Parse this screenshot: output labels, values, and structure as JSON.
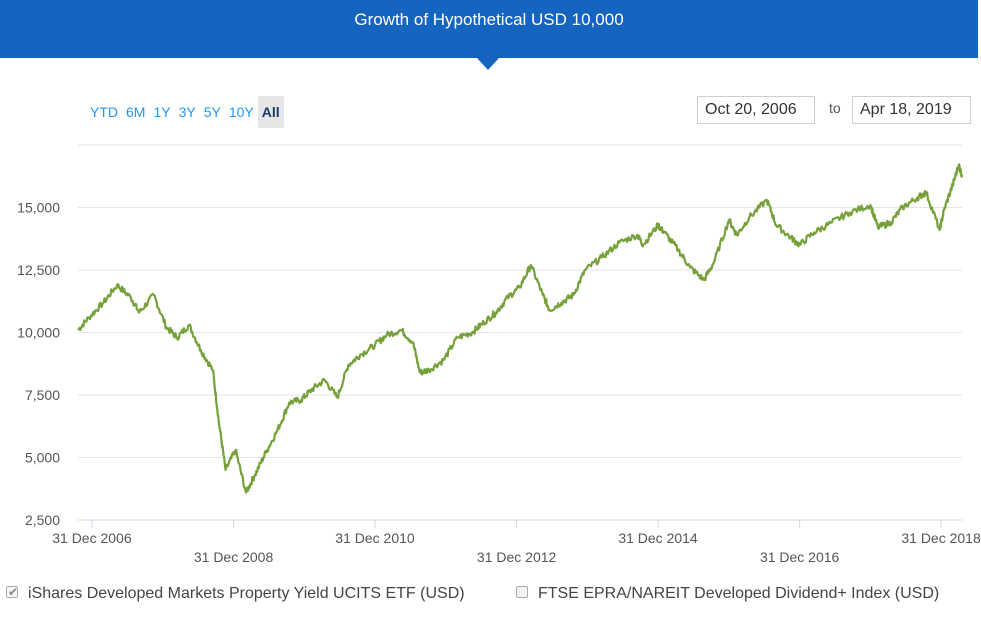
{
  "header": {
    "title": "Growth of Hypothetical USD 10,000"
  },
  "ranges": [
    "YTD",
    "6M",
    "1Y",
    "3Y",
    "5Y",
    "10Y",
    "All"
  ],
  "active_range": "All",
  "date_range": {
    "from": "Oct 20, 2006",
    "to_label": "to",
    "to": "Apr 18, 2019"
  },
  "legend": [
    {
      "label": "iShares Developed Markets Property Yield UCITS ETF (USD)",
      "checked": true
    },
    {
      "label": "FTSE EPRA/NAREIT Developed Dividend+ Index (USD)",
      "checked": false
    }
  ],
  "colors": {
    "header": "#1565c0",
    "series": "#76a03a",
    "grid": "#e6e6e6"
  },
  "chart_data": {
    "type": "line",
    "ylim": [
      2500,
      17500
    ],
    "yticks": [
      2500,
      5000,
      7500,
      10000,
      12500,
      15000
    ],
    "ytick_labels": [
      "2,500",
      "5,000",
      "7,500",
      "10,000",
      "12,500",
      "15,000"
    ],
    "xlim": [
      "2006-10-20",
      "2019-04-18"
    ],
    "xticks": [
      "2006-12-31",
      "2008-12-31",
      "2010-12-31",
      "2012-12-31",
      "2014-12-31",
      "2016-12-31",
      "2018-12-31"
    ],
    "xtick_labels": [
      "31 Dec 2006",
      "31 Dec 2008",
      "31 Dec 2010",
      "31 Dec 2012",
      "31 Dec 2014",
      "31 Dec 2016",
      "31 Dec 2018"
    ],
    "series": [
      {
        "name": "iShares Developed Markets Property Yield UCITS ETF (USD)",
        "x": [
          "2006-10-20",
          "2006-12-15",
          "2007-03-01",
          "2007-05-10",
          "2007-07-20",
          "2007-09-01",
          "2007-11-15",
          "2008-01-20",
          "2008-03-15",
          "2008-05-15",
          "2008-07-15",
          "2008-09-15",
          "2008-10-15",
          "2008-11-20",
          "2009-01-10",
          "2009-03-05",
          "2009-04-20",
          "2009-06-15",
          "2009-08-15",
          "2009-10-15",
          "2009-12-15",
          "2010-02-05",
          "2010-04-15",
          "2010-06-20",
          "2010-08-15",
          "2010-10-15",
          "2010-12-31",
          "2011-03-01",
          "2011-05-15",
          "2011-07-15",
          "2011-08-20",
          "2011-10-05",
          "2011-12-20",
          "2012-03-01",
          "2012-05-15",
          "2012-07-15",
          "2012-09-15",
          "2012-11-15",
          "2013-01-15",
          "2013-03-15",
          "2013-05-15",
          "2013-06-20",
          "2013-08-20",
          "2013-10-20",
          "2013-12-20",
          "2014-03-15",
          "2014-06-15",
          "2014-09-15",
          "2014-10-15",
          "2014-12-31",
          "2015-02-01",
          "2015-04-15",
          "2015-06-15",
          "2015-08-25",
          "2015-10-15",
          "2016-01-01",
          "2016-02-11",
          "2016-04-15",
          "2016-07-15",
          "2016-09-01",
          "2016-11-15",
          "2016-12-31",
          "2017-03-15",
          "2017-06-15",
          "2017-09-15",
          "2017-12-31",
          "2018-02-08",
          "2018-04-15",
          "2018-06-15",
          "2018-09-01",
          "2018-10-15",
          "2018-12-24",
          "2019-01-15",
          "2019-03-01",
          "2019-04-01",
          "2019-04-18"
        ],
        "values": [
          10100,
          10600,
          11200,
          11900,
          11400,
          10800,
          11500,
          10200,
          9800,
          10300,
          9300,
          8500,
          6500,
          4500,
          5300,
          3600,
          4300,
          5200,
          6100,
          7200,
          7300,
          7700,
          8100,
          7400,
          8700,
          9100,
          9500,
          9900,
          10100,
          9600,
          8400,
          8500,
          8900,
          9800,
          10000,
          10400,
          10800,
          11400,
          11800,
          12700,
          11500,
          10900,
          11200,
          11500,
          12500,
          13000,
          13600,
          13900,
          13500,
          14300,
          14000,
          13300,
          12600,
          12100,
          12800,
          14500,
          13900,
          14600,
          15300,
          14300,
          13800,
          13500,
          14000,
          14400,
          14800,
          15100,
          14200,
          14400,
          15000,
          15400,
          15600,
          14100,
          14900,
          15900,
          16700,
          16300
        ]
      }
    ]
  }
}
